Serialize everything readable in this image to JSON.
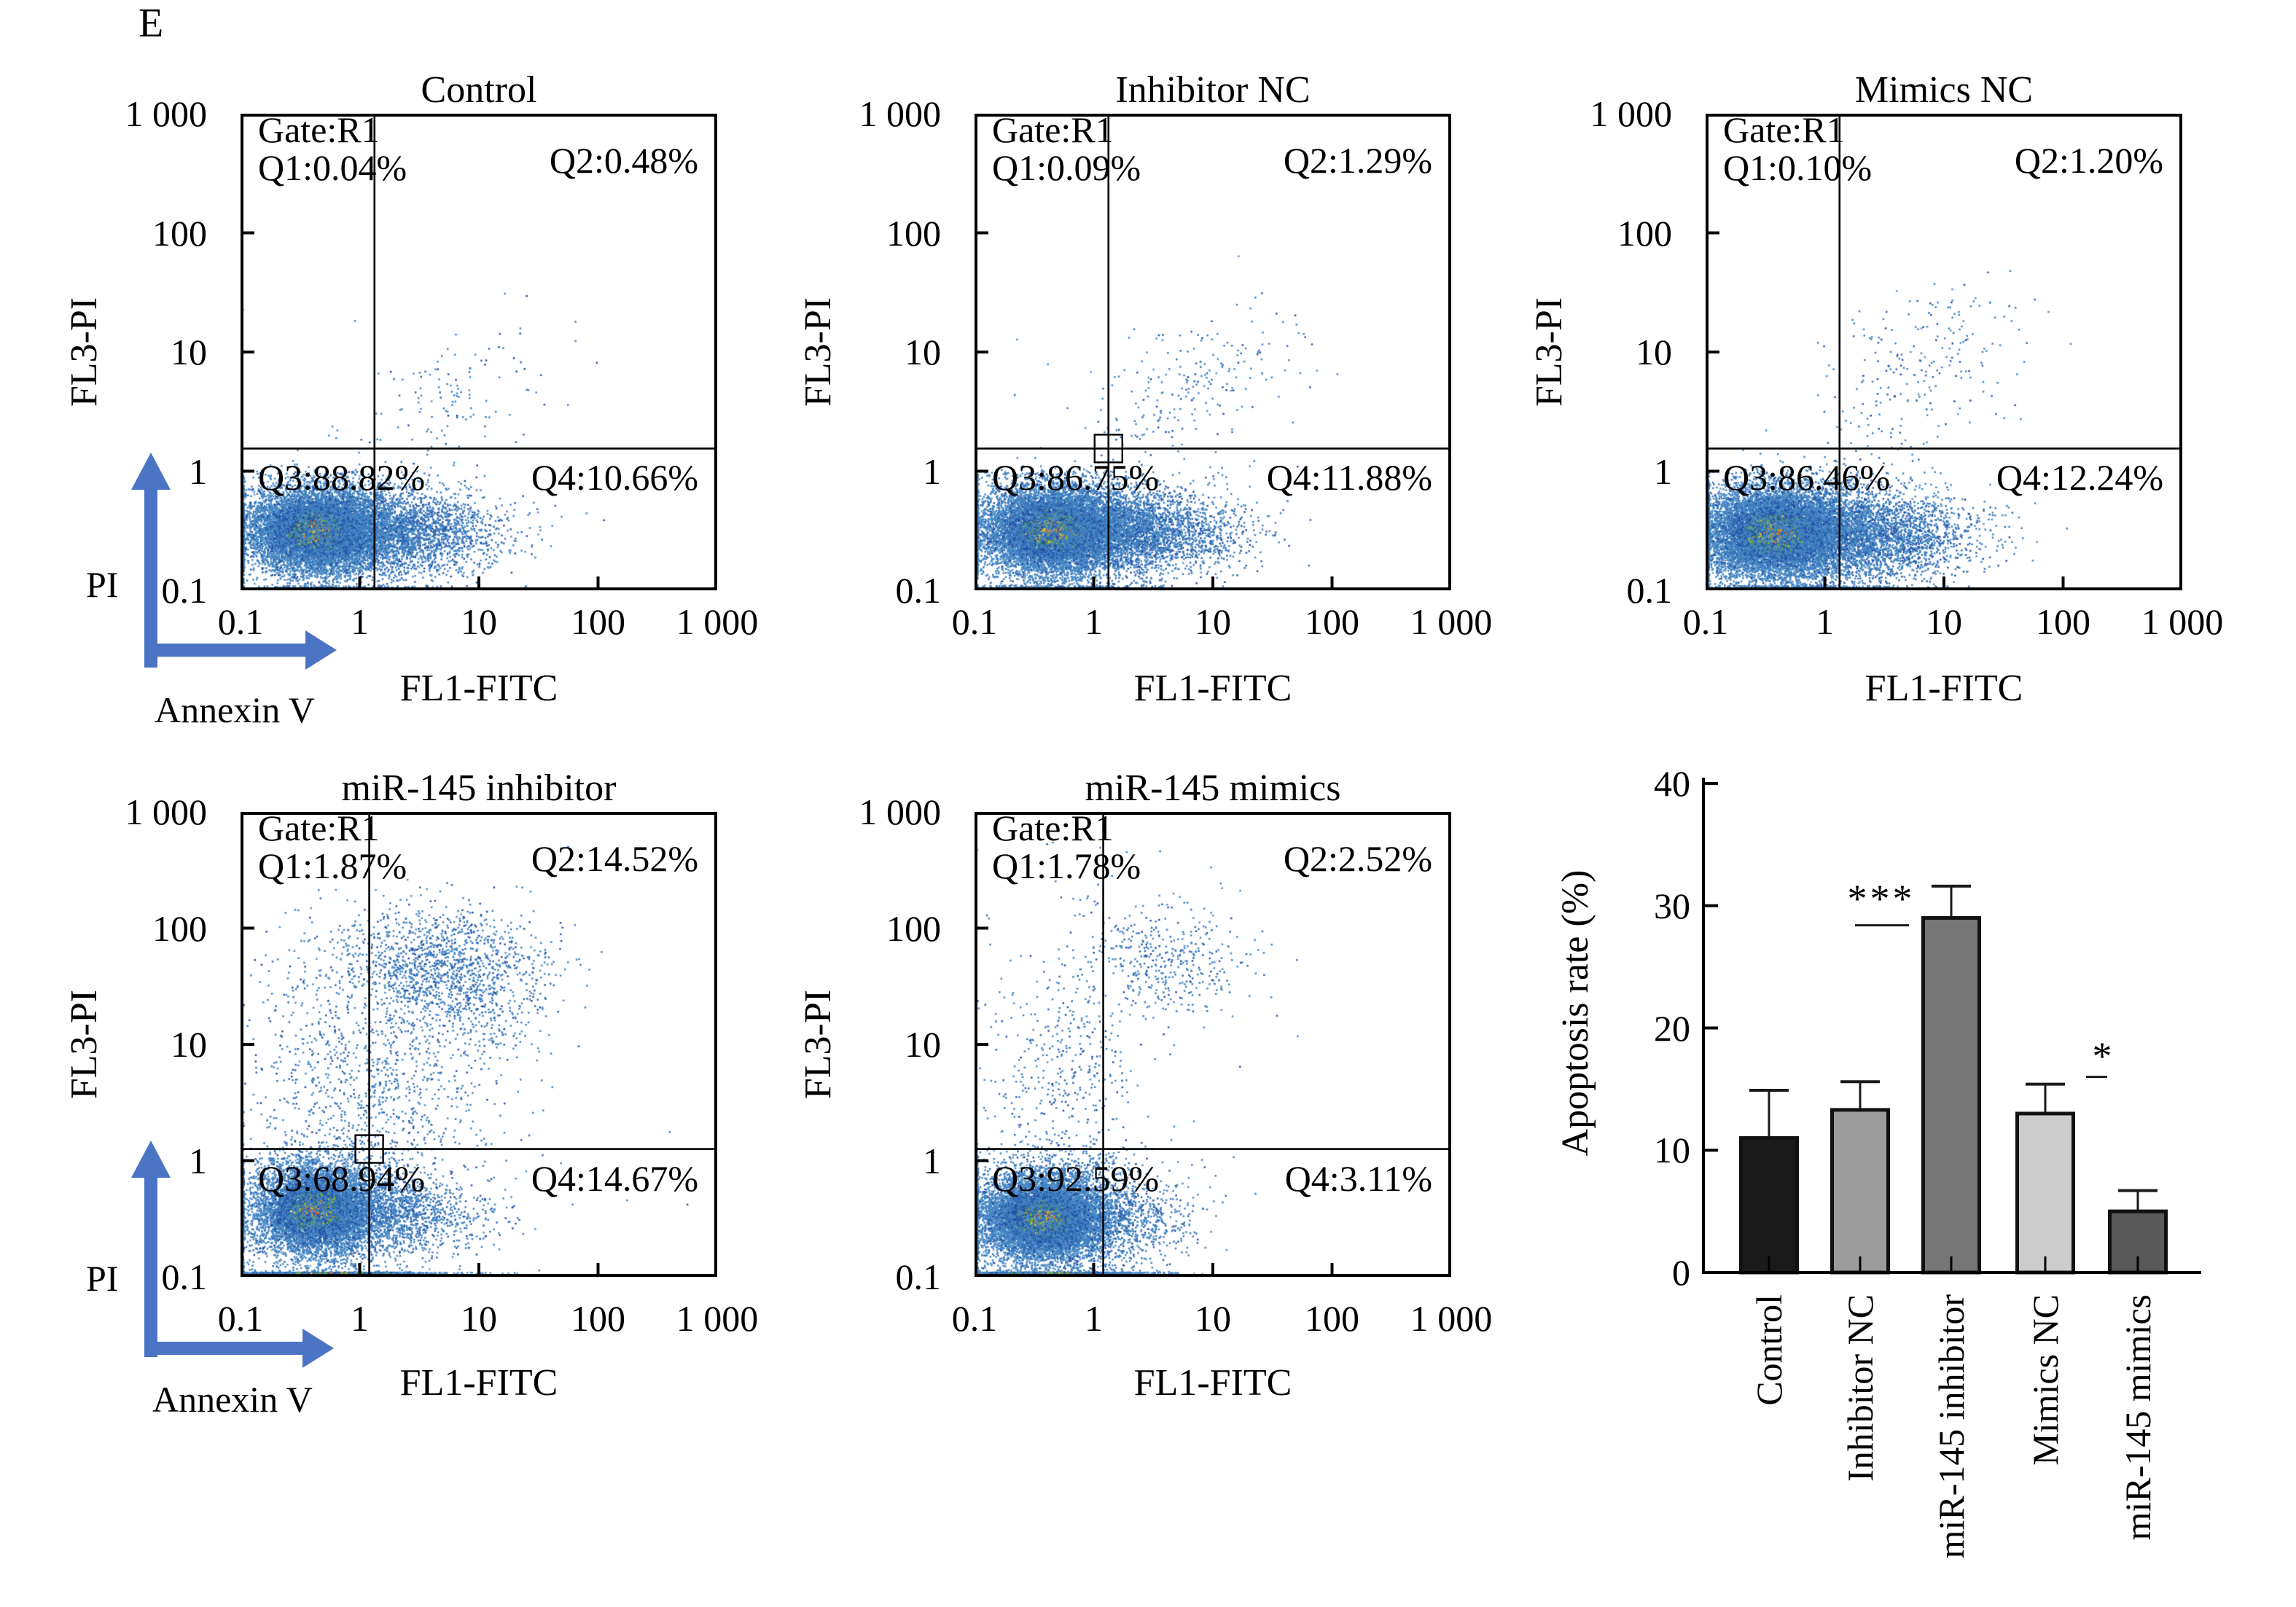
{
  "panel_label": "E",
  "axis_annotation": {
    "vertical_label": "PI",
    "horizontal_label": "Annexin V"
  },
  "colors": {
    "text": "#000000",
    "frame": "#000000",
    "arrow_blue": "#4b74c4",
    "scatter_steel_blue": "#4384c2",
    "scatter_dark_blue": "#2450a4",
    "scatter_green": "#53a83e",
    "scatter_yellow": "#e8c33a",
    "scatter_orange": "#e2772c",
    "scatter_red": "#d23b27"
  },
  "chart_data": [
    {
      "type": "scatter",
      "title": "Control",
      "gate_label": "Gate:R1",
      "quadrants": {
        "q1": "Q1:0.04%",
        "q2": "Q2:0.48%",
        "q3": "Q3:88.82%",
        "q4": "Q4:10.66%"
      },
      "quadrant_values": {
        "q1_pct": 0.04,
        "q2_pct": 0.48,
        "q3_pct": 88.82,
        "q4_pct": 10.66
      },
      "xlabel": "FL1-FITC",
      "ylabel": "FL3-PI",
      "x_ticks": [
        "0.1",
        "1",
        "10",
        "100",
        "1 000"
      ],
      "y_ticks": [
        "1 000",
        "100",
        "10",
        "1",
        "0.1"
      ],
      "x_range": [
        0.1,
        1000
      ],
      "y_range": [
        0.1,
        1000
      ],
      "log_scale": true,
      "quadrant_gate_x": 1.3,
      "quadrant_gate_y": 1.3,
      "gate_marker": false,
      "seed": 101,
      "clusters": [
        {
          "n": 8000,
          "cx": -0.36,
          "cy": -0.5,
          "sx": 0.27,
          "sy": 0.17,
          "rho": 0,
          "kind": "hot"
        },
        {
          "n": 3000,
          "cx": -0.28,
          "cy": -0.47,
          "sx": 0.46,
          "sy": 0.24,
          "rho": 0,
          "kind": "blue",
          "ymax": 0.0
        },
        {
          "n": 2500,
          "cx": 0.33,
          "cy": -0.52,
          "sx": 0.42,
          "sy": 0.17,
          "rho": 0,
          "kind": "blue",
          "ymax": 0.0
        },
        {
          "n": 95,
          "cx": 0.88,
          "cy": 0.7,
          "sx": 0.36,
          "sy": 0.26,
          "rho": 0.5,
          "kind": "blue"
        },
        {
          "n": 40,
          "cx": 0.45,
          "cy": 0.25,
          "sx": 0.35,
          "sy": 0.35,
          "rho": 0.3,
          "kind": "blue"
        },
        {
          "n": 18,
          "cx": 0.5,
          "cy": 0.1,
          "sx": 0.8,
          "sy": 0.7,
          "rho": 0.3,
          "kind": "blue"
        }
      ]
    },
    {
      "type": "scatter",
      "title": "Inhibitor NC",
      "gate_label": "Gate:R1",
      "quadrants": {
        "q1": "Q1:0.09%",
        "q2": "Q2:1.29%",
        "q3": "Q3:86.75%",
        "q4": "Q4:11.88%"
      },
      "quadrant_values": {
        "q1_pct": 0.09,
        "q2_pct": 1.29,
        "q3_pct": 86.75,
        "q4_pct": 11.88
      },
      "xlabel": "FL1-FITC",
      "ylabel": "FL3-PI",
      "x_ticks": [
        "0.1",
        "1",
        "10",
        "100",
        "1 000"
      ],
      "y_ticks": [
        "1 000",
        "100",
        "10",
        "1",
        "0.1"
      ],
      "x_range": [
        0.1,
        1000
      ],
      "y_range": [
        0.1,
        1000
      ],
      "log_scale": true,
      "quadrant_gate_x": 1.3,
      "quadrant_gate_y": 1.3,
      "gate_marker": true,
      "seed": 202,
      "clusters": [
        {
          "n": 8300,
          "cx": -0.34,
          "cy": -0.5,
          "sx": 0.28,
          "sy": 0.175,
          "rho": 0,
          "kind": "hot"
        },
        {
          "n": 3100,
          "cx": -0.27,
          "cy": -0.47,
          "sx": 0.47,
          "sy": 0.25,
          "rho": 0,
          "kind": "blue",
          "ymax": 0.0
        },
        {
          "n": 2700,
          "cx": 0.36,
          "cy": -0.52,
          "sx": 0.42,
          "sy": 0.17,
          "rho": 0,
          "kind": "blue",
          "ymax": 0.0
        },
        {
          "n": 170,
          "cx": 0.88,
          "cy": 0.78,
          "sx": 0.38,
          "sy": 0.3,
          "rho": 0.45,
          "kind": "blue"
        },
        {
          "n": 55,
          "cx": 0.45,
          "cy": 0.3,
          "sx": 0.35,
          "sy": 0.35,
          "rho": 0.3,
          "kind": "blue"
        },
        {
          "n": 20,
          "cx": 0.5,
          "cy": 0.1,
          "sx": 0.8,
          "sy": 0.7,
          "rho": 0.3,
          "kind": "blue"
        }
      ]
    },
    {
      "type": "scatter",
      "title": "Mimics NC",
      "gate_label": "Gate:R1",
      "quadrants": {
        "q1": "Q1:0.10%",
        "q2": "Q2:1.20%",
        "q3": "Q3:86.46%",
        "q4": "Q4:12.24%"
      },
      "quadrant_values": {
        "q1_pct": 0.1,
        "q2_pct": 1.2,
        "q3_pct": 86.46,
        "q4_pct": 12.24
      },
      "xlabel": "FL1-FITC",
      "ylabel": "FL3-PI",
      "x_ticks": [
        "0.1",
        "1",
        "10",
        "100",
        "1 000"
      ],
      "y_ticks": [
        "1 000",
        "100",
        "10",
        "1",
        "0.1"
      ],
      "x_range": [
        0.1,
        1000
      ],
      "y_range": [
        0.1,
        1000
      ],
      "log_scale": true,
      "quadrant_gate_x": 1.3,
      "quadrant_gate_y": 1.3,
      "gate_marker": false,
      "seed": 303,
      "clusters": [
        {
          "n": 8500,
          "cx": -0.4,
          "cy": -0.52,
          "sx": 0.3,
          "sy": 0.185,
          "rho": 0,
          "kind": "hot"
        },
        {
          "n": 3100,
          "cx": -0.33,
          "cy": -0.5,
          "sx": 0.49,
          "sy": 0.26,
          "rho": 0,
          "kind": "blue",
          "ymax": 0.0
        },
        {
          "n": 2800,
          "cx": 0.36,
          "cy": -0.54,
          "sx": 0.43,
          "sy": 0.18,
          "rho": 0,
          "kind": "blue",
          "ymax": 0.0
        },
        {
          "n": 200,
          "cx": 0.82,
          "cy": 0.85,
          "sx": 0.38,
          "sy": 0.38,
          "rho": 0.3,
          "kind": "blue"
        },
        {
          "n": 55,
          "cx": 0.45,
          "cy": 0.25,
          "sx": 0.35,
          "sy": 0.35,
          "rho": 0.3,
          "kind": "blue"
        },
        {
          "n": 20,
          "cx": 0.5,
          "cy": 0.1,
          "sx": 0.8,
          "sy": 0.7,
          "rho": 0.3,
          "kind": "blue"
        }
      ]
    },
    {
      "type": "scatter",
      "title": "miR-145 inhibitor",
      "gate_label": "Gate:R1",
      "quadrants": {
        "q1": "Q1:1.87%",
        "q2": "Q2:14.52%",
        "q3": "Q3:68.94%",
        "q4": "Q4:14.67%"
      },
      "quadrant_values": {
        "q1_pct": 1.87,
        "q2_pct": 14.52,
        "q3_pct": 68.94,
        "q4_pct": 14.67
      },
      "xlabel": "FL1-FITC",
      "ylabel": "FL3-PI",
      "x_ticks": [
        "0.1",
        "1",
        "10",
        "100",
        "1 000"
      ],
      "y_ticks": [
        "1 000",
        "100",
        "10",
        "1",
        "0.1"
      ],
      "x_range": [
        0.1,
        1000
      ],
      "y_range": [
        0.1,
        1000
      ],
      "log_scale": true,
      "quadrant_gate_x": 1.3,
      "quadrant_gate_y": 1.3,
      "gate_marker": true,
      "seed": 404,
      "clusters": [
        {
          "n": 6200,
          "cx": -0.37,
          "cy": -0.43,
          "sx": 0.235,
          "sy": 0.185,
          "rho": 0,
          "kind": "hot"
        },
        {
          "n": 2200,
          "cx": -0.31,
          "cy": -0.42,
          "sx": 0.4,
          "sy": 0.26,
          "rho": 0,
          "kind": "blue"
        },
        {
          "n": 1500,
          "cx": 0.22,
          "cy": -0.46,
          "sx": 0.42,
          "sy": 0.18,
          "rho": 0,
          "kind": "blue",
          "ymax": 0.05
        },
        {
          "n": 1250,
          "cx": 0.62,
          "cy": 1.68,
          "sx": 0.46,
          "sy": 0.25,
          "rho": 0,
          "kind": "blue"
        },
        {
          "n": 300,
          "cx": 1.05,
          "cy": 1.4,
          "sx": 0.28,
          "sy": 0.3,
          "rho": 0,
          "kind": "blue"
        },
        {
          "n": 750,
          "cx": 0.28,
          "cy": 0.65,
          "sx": 0.42,
          "sy": 0.52,
          "rho": 0,
          "kind": "blue"
        },
        {
          "n": 270,
          "cx": -0.4,
          "cy": 0.75,
          "sx": 0.28,
          "sy": 0.55,
          "rho": 0,
          "kind": "blue"
        },
        {
          "n": 900,
          "cx": -0.28,
          "cy": -1.04,
          "sx": 0.5,
          "sy": 0.05,
          "rho": 0,
          "kind": "hot"
        },
        {
          "n": 60,
          "cx": 0.6,
          "cy": 0.5,
          "sx": 0.9,
          "sy": 0.9,
          "rho": 0,
          "kind": "blue"
        }
      ]
    },
    {
      "type": "scatter",
      "title": "miR-145 mimics",
      "gate_label": "Gate:R1",
      "quadrants": {
        "q1": "Q1:1.78%",
        "q2": "Q2:2.52%",
        "q3": "Q3:92.59%",
        "q4": "Q4:3.11%"
      },
      "quadrant_values": {
        "q1_pct": 1.78,
        "q2_pct": 2.52,
        "q3_pct": 92.59,
        "q4_pct": 3.11
      },
      "xlabel": "FL1-FITC",
      "ylabel": "FL3-PI",
      "x_ticks": [
        "0.1",
        "1",
        "10",
        "100",
        "1 000"
      ],
      "y_ticks": [
        "1 000",
        "100",
        "10",
        "1",
        "0.1"
      ],
      "x_range": [
        0.1,
        1000
      ],
      "y_range": [
        0.1,
        1000
      ],
      "log_scale": true,
      "quadrant_gate_x": 1.3,
      "quadrant_gate_y": 1.3,
      "gate_marker": false,
      "seed": 505,
      "clusters": [
        {
          "n": 8600,
          "cx": -0.42,
          "cy": -0.5,
          "sx": 0.24,
          "sy": 0.17,
          "rho": 0,
          "kind": "hot"
        },
        {
          "n": 2800,
          "cx": -0.36,
          "cy": -0.48,
          "sx": 0.42,
          "sy": 0.26,
          "rho": 0,
          "kind": "blue",
          "ymax": 0.3
        },
        {
          "n": 650,
          "cx": 0.18,
          "cy": -0.5,
          "sx": 0.36,
          "sy": 0.17,
          "rho": 0,
          "kind": "blue",
          "ymax": 0.0
        },
        {
          "n": 430,
          "cx": -0.28,
          "cy": 0.7,
          "sx": 0.32,
          "sy": 0.58,
          "rho": 0,
          "kind": "blue"
        },
        {
          "n": 390,
          "cx": 0.6,
          "cy": 1.72,
          "sx": 0.33,
          "sy": 0.24,
          "rho": 0,
          "kind": "blue"
        },
        {
          "n": 55,
          "cx": 0.2,
          "cy": 1.95,
          "sx": 0.6,
          "sy": 0.45,
          "rho": 0,
          "kind": "blue"
        },
        {
          "n": 1000,
          "cx": -0.36,
          "cy": -1.04,
          "sx": 0.42,
          "sy": 0.05,
          "rho": 0,
          "kind": "hot"
        },
        {
          "n": 25,
          "cx": 0.5,
          "cy": 0.2,
          "sx": 0.8,
          "sy": 0.7,
          "rho": 0,
          "kind": "blue"
        }
      ]
    },
    {
      "type": "bar",
      "title": "",
      "ylabel": "Apoptosis rate (%)",
      "xlabel": "",
      "categories": [
        "Control",
        "Inhibitor NC",
        "miR-145 inhibitor",
        "Mimics NC",
        "miR-145 mimics"
      ],
      "values": [
        11.0,
        13.3,
        29.0,
        13.0,
        5.0
      ],
      "errors_plus": [
        3.9,
        2.3,
        2.6,
        2.4,
        1.7
      ],
      "bar_colors": [
        "#1a1a1a",
        "#9c9c9c",
        "#767676",
        "#cccccc",
        "#595959"
      ],
      "ylim": [
        0,
        40
      ],
      "y_ticks": [
        "0",
        "10",
        "20",
        "30",
        "40"
      ],
      "grid": false,
      "legend": false,
      "significance": [
        {
          "label": "***",
          "from_category": "Inhibitor NC",
          "to_category": "miR-145 inhibitor",
          "line_y": 28.4
        },
        {
          "label": "*",
          "from_category": "Mimics NC",
          "to_category": "miR-145 mimics",
          "line_y": 16.0
        }
      ]
    }
  ]
}
